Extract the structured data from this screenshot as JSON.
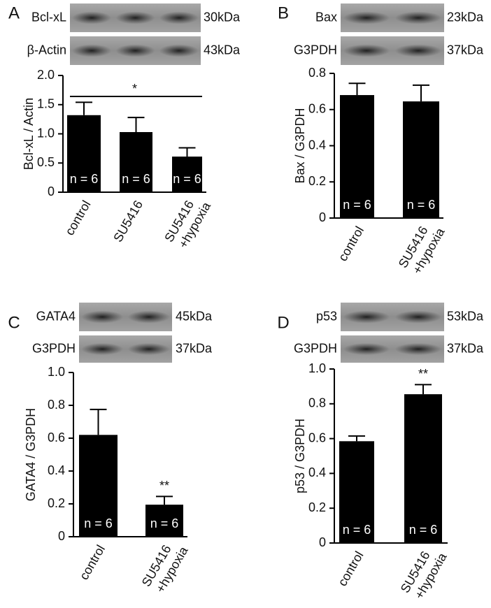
{
  "chart_data": [
    {
      "type": "bar",
      "panel": "A",
      "blots": [
        {
          "protein": "Bcl-xL",
          "kda": "30kDa"
        },
        {
          "protein": "β-Actin",
          "kda": "43kDa"
        }
      ],
      "ylabel": "Bcl-xL / Actin",
      "categories": [
        [
          "control"
        ],
        [
          "SU5416"
        ],
        [
          "SU5416",
          "+hypoxia"
        ]
      ],
      "values": [
        1.32,
        1.03,
        0.61
      ],
      "errors": [
        0.22,
        0.25,
        0.15
      ],
      "n_labels": [
        "n = 6",
        "n = 6",
        "n = 6"
      ],
      "ylim": [
        0,
        2
      ],
      "yticks": [
        0,
        0.5,
        {
          "value": 1,
          "label": "1.0"
        },
        1.5,
        {
          "value": 2,
          "label": "2.0"
        }
      ],
      "color": "#000000",
      "annotation": {
        "text": "*",
        "type": "bracket"
      }
    },
    {
      "type": "bar",
      "panel": "B",
      "blots": [
        {
          "protein": "Bax",
          "kda": "23kDa"
        },
        {
          "protein": "G3PDH",
          "kda": "37kDa"
        }
      ],
      "ylabel": "Bax / G3PDH",
      "categories": [
        [
          "control"
        ],
        [
          "SU5416",
          "+hypoxia"
        ]
      ],
      "values": [
        0.68,
        0.645
      ],
      "errors": [
        0.065,
        0.09
      ],
      "n_labels": [
        "n = 6",
        "n = 6"
      ],
      "ylim": [
        0,
        0.8
      ],
      "yticks": [
        0,
        0.2,
        0.4,
        0.6,
        0.8
      ],
      "color": "#000000"
    },
    {
      "type": "bar",
      "panel": "C",
      "blots": [
        {
          "protein": "GATA4",
          "kda": "45kDa"
        },
        {
          "protein": "G3PDH",
          "kda": "37kDa"
        }
      ],
      "ylabel": "GATA4 / G3PDH",
      "categories": [
        [
          "control"
        ],
        [
          "SU5416",
          "+hypoxia"
        ]
      ],
      "values": [
        0.62,
        0.195
      ],
      "errors": [
        0.155,
        0.05
      ],
      "n_labels": [
        "n = 6",
        "n = 6"
      ],
      "ylim": [
        0,
        1
      ],
      "yticks": [
        0,
        0.2,
        0.4,
        0.6,
        0.8,
        {
          "value": 1,
          "label": "1.0"
        }
      ],
      "color": "#000000",
      "annotation": {
        "text": "**",
        "type": "over-bar"
      }
    },
    {
      "type": "bar",
      "panel": "D",
      "blots": [
        {
          "protein": "p53",
          "kda": "53kDa"
        },
        {
          "protein": "G3PDH",
          "kda": "37kDa"
        }
      ],
      "ylabel": "p53 / G3PDH",
      "categories": [
        [
          "control"
        ],
        [
          "SU5416",
          "+hypoxia"
        ]
      ],
      "values": [
        0.585,
        0.855
      ],
      "errors": [
        0.03,
        0.055
      ],
      "n_labels": [
        "n = 6",
        "n = 6"
      ],
      "ylim": [
        0,
        1
      ],
      "yticks": [
        0,
        0.2,
        0.4,
        0.6,
        0.8,
        {
          "value": 1,
          "label": "1.0"
        }
      ],
      "color": "#000000",
      "annotation": {
        "text": "**",
        "type": "over-bar"
      }
    }
  ]
}
